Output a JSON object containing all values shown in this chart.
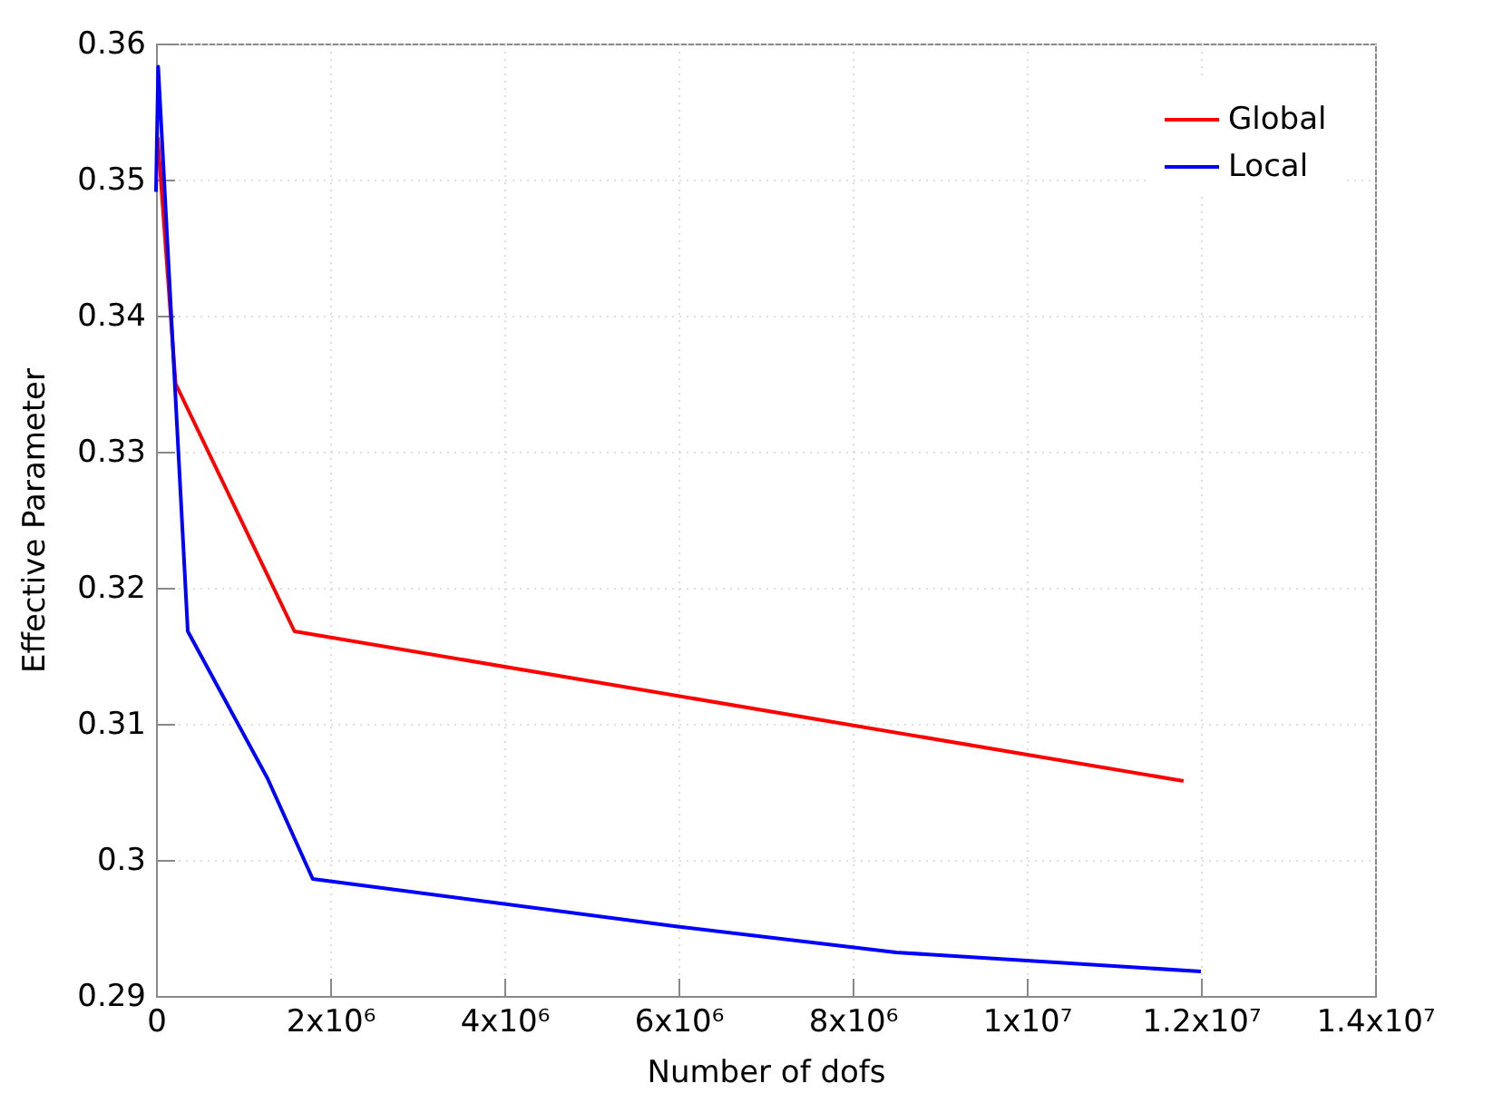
{
  "chart_data": {
    "type": "line",
    "xlabel": "Number of dofs",
    "ylabel": "Effective Parameter",
    "xlim": [
      0,
      14000000
    ],
    "ylim": [
      0.29,
      0.36
    ],
    "xticks": [
      0,
      {
        "value": 2000000,
        "label": "2x10⁶"
      },
      {
        "value": 4000000,
        "label": "4x10⁶"
      },
      {
        "value": 6000000,
        "label": "6x10⁶"
      },
      {
        "value": 8000000,
        "label": "8x10⁶"
      },
      {
        "value": 10000000,
        "label": "1x10⁷"
      },
      {
        "value": 12000000,
        "label": "1.2x10⁷"
      },
      {
        "value": 14000000,
        "label": "1.4x10⁷"
      }
    ],
    "yticks": [
      0.29,
      0.3,
      0.31,
      0.32,
      0.33,
      0.34,
      0.35,
      0.36
    ],
    "grid": true,
    "legend": "top right",
    "line_style": "solid",
    "series": [
      {
        "name": "Global",
        "color": "#ff0000",
        "x": [
          20000,
          225000,
          1590000,
          11800000
        ],
        "values": [
          0.3531,
          0.335,
          0.3168,
          0.3058
        ]
      },
      {
        "name": "Local",
        "color": "#0000ff",
        "x": [
          0,
          25000,
          365000,
          1280000,
          1800000,
          5990000,
          8500000,
          12000000
        ],
        "values": [
          0.3491,
          0.3583,
          0.3168,
          0.306,
          0.2986,
          0.2951,
          0.2932,
          0.2918
        ]
      }
    ]
  }
}
